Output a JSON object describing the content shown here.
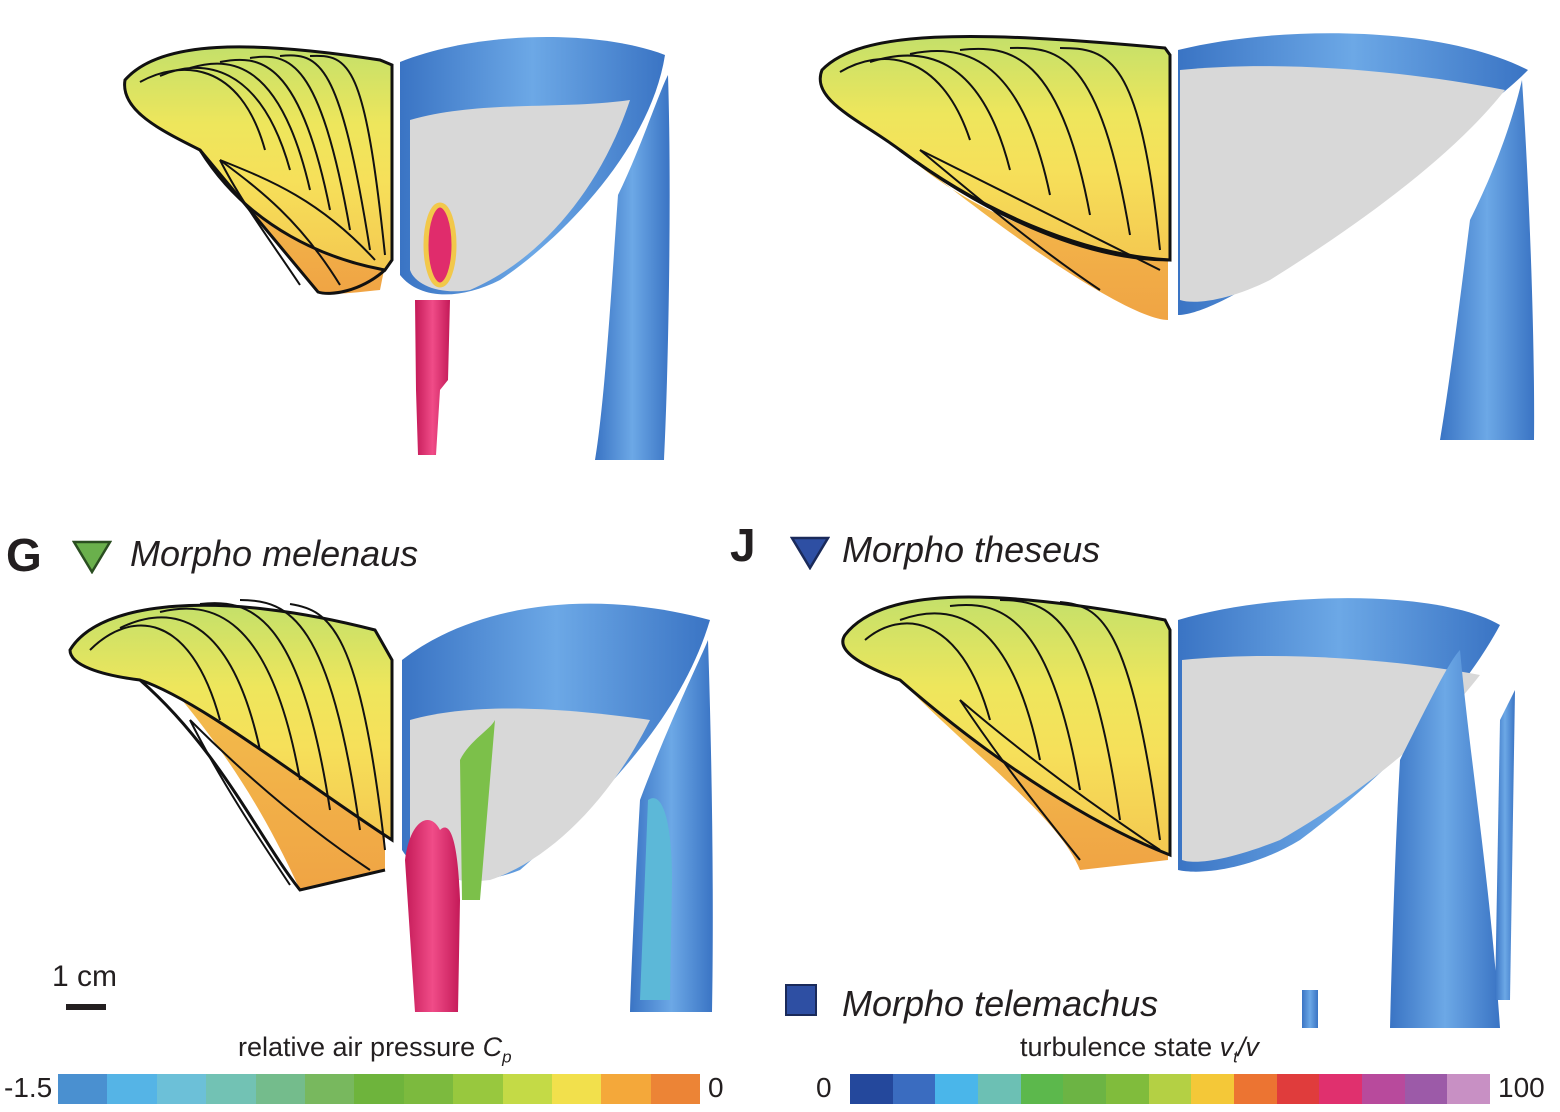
{
  "panels": [
    {
      "letter": "",
      "species": ""
    },
    {
      "letter": "",
      "species": ""
    },
    {
      "letter": "G",
      "species": "Morpho melenaus",
      "marker": "triangle",
      "marker_color": "#6ab04c"
    },
    {
      "letter": "J",
      "species": "Morpho theseus",
      "marker": "triangle",
      "marker_color": "#2e4fa3"
    }
  ],
  "extra_species": {
    "label": "Morpho telemachus",
    "marker": "square",
    "marker_color": "#2e4fa3"
  },
  "scale": {
    "label": "1 cm"
  },
  "colorbars": {
    "pressure": {
      "title": "relative air pressure ",
      "symbol": "C",
      "subscript": "p",
      "min_label": "-1.5",
      "max_label": "0",
      "colors": [
        "#4a90d0",
        "#55b4e6",
        "#6cc0d8",
        "#72c2b4",
        "#74bc8c",
        "#78b85e",
        "#6eb43c",
        "#7cba3e",
        "#98c83e",
        "#c4da46",
        "#f2e04c",
        "#f4a83a",
        "#ec8436"
      ]
    },
    "turbulence": {
      "title": "turbulence state ",
      "symbol": "v",
      "subscript": "t",
      "suffix": "/v",
      "min_label": "0",
      "max_label": "100",
      "colors": [
        "#24489c",
        "#3a6cc0",
        "#4ab6ea",
        "#6cc0b4",
        "#5cb84c",
        "#6cb444",
        "#80bc3c",
        "#b4d044",
        "#f4c838",
        "#ec7432",
        "#e03c3c",
        "#e0306e",
        "#b84a9c",
        "#9c5aa8",
        "#c890c4"
      ]
    }
  },
  "palette": {
    "wing_yellow": "#f0e45c",
    "wing_orange": "#f2a846",
    "wing_green_edge": "#a8d070",
    "wake_blue": "#4a88d4",
    "wake_gray": "#d8d8d8",
    "pink": "#e02c6c"
  }
}
